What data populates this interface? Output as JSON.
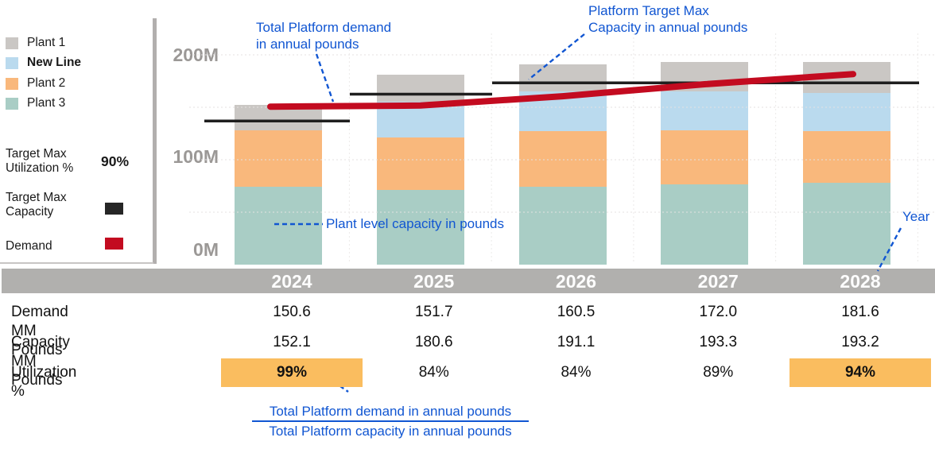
{
  "legend": {
    "items": [
      {
        "label": "Plant 1",
        "color": "#cac7c4",
        "bold": false
      },
      {
        "label": "New Line",
        "color": "#badaee",
        "bold": true
      },
      {
        "label": "Plant 2",
        "color": "#f9b87c",
        "bold": false
      },
      {
        "label": "Plant 3",
        "color": "#a9cdc5",
        "bold": false
      }
    ],
    "target_max_utilization_label": "Target Max\nUtilization %",
    "target_max_utilization_value": "90%",
    "target_max_capacity_label": "Target Max\nCapacity",
    "target_max_capacity_color": "#262626",
    "demand_label": "Demand",
    "demand_color": "#c30b20"
  },
  "axis": {
    "yticks": [
      "200M",
      "100M",
      "0M"
    ]
  },
  "annotations": {
    "demand_line1": "Total Platform demand",
    "demand_line2": "in annual pounds",
    "target_line1": "Platform Target Max",
    "target_line2": "Capacity in annual pounds",
    "plant_capacity": "Plant level capacity in pounds",
    "year": "Year",
    "fraction_numerator": "Total Platform demand in annual pounds",
    "fraction_denominator": "Total Platform capacity in annual pounds"
  },
  "chart_data": {
    "type": "bar",
    "subtype": "stacked-bars-with-lines",
    "categories": [
      "2024",
      "2025",
      "2026",
      "2027",
      "2028"
    ],
    "stack_order_bottom_to_top": [
      "Plant 3",
      "Plant 2",
      "New Line",
      "Plant 1"
    ],
    "series": [
      {
        "name": "Plant 3",
        "color": "#a9cdc5",
        "values": [
          74.5,
          71.4,
          74.0,
          76.6,
          77.7
        ]
      },
      {
        "name": "Plant 2",
        "color": "#f9b87c",
        "values": [
          53.5,
          50.0,
          53.2,
          51.5,
          49.9
        ]
      },
      {
        "name": "New Line",
        "color": "#badaee",
        "values": [
          0,
          33.6,
          38.1,
          37.2,
          36.4
        ]
      },
      {
        "name": "Plant 1",
        "color": "#cac7c4",
        "values": [
          24.1,
          25.7,
          25.9,
          27.9,
          29.2
        ]
      }
    ],
    "capacity_totals_mm_pounds": [
      152.1,
      180.6,
      191.1,
      193.3,
      193.2
    ],
    "demand_line": {
      "name": "Demand",
      "color": "#c30b20",
      "values": [
        150.6,
        151.7,
        160.5,
        172.0,
        181.6
      ]
    },
    "target_max_capacity_line": {
      "name": "Target Max Capacity",
      "color": "#1f1f1f",
      "values": [
        136.9,
        162.5,
        172.0,
        174.0,
        173.9
      ],
      "note": "90% of capacity; drawn as step segments per year group"
    },
    "target_max_utilization_pct": 90,
    "ylim": [
      0,
      220
    ],
    "ytick_values": [
      0,
      100,
      200
    ],
    "grid": "faint dashed",
    "legend_position": "left"
  },
  "table": {
    "years": [
      "2024",
      "2025",
      "2026",
      "2027",
      "2028"
    ],
    "rows": [
      {
        "label": "Demand MM Pounds",
        "values": [
          "150.6",
          "151.7",
          "160.5",
          "172.0",
          "181.6"
        ],
        "highlight": [
          false,
          false,
          false,
          false,
          false
        ],
        "bold": false
      },
      {
        "label": "Capacity MM Pounds",
        "values": [
          "152.1",
          "180.6",
          "191.1",
          "193.3",
          "193.2"
        ],
        "highlight": [
          false,
          false,
          false,
          false,
          false
        ],
        "bold": false
      },
      {
        "label": "Utilization %",
        "values": [
          "99%",
          "84%",
          "84%",
          "89%",
          "94%"
        ],
        "highlight": [
          true,
          false,
          false,
          false,
          true
        ],
        "bold": false
      }
    ],
    "highlight_color": "#fabd5f"
  },
  "colors": {
    "annotation_blue": "#1156d2",
    "year_band": "#b1b0ae",
    "axis_label_gray": "#9b9896",
    "demand_red": "#c30b20",
    "target_black": "#1f1f1f"
  }
}
